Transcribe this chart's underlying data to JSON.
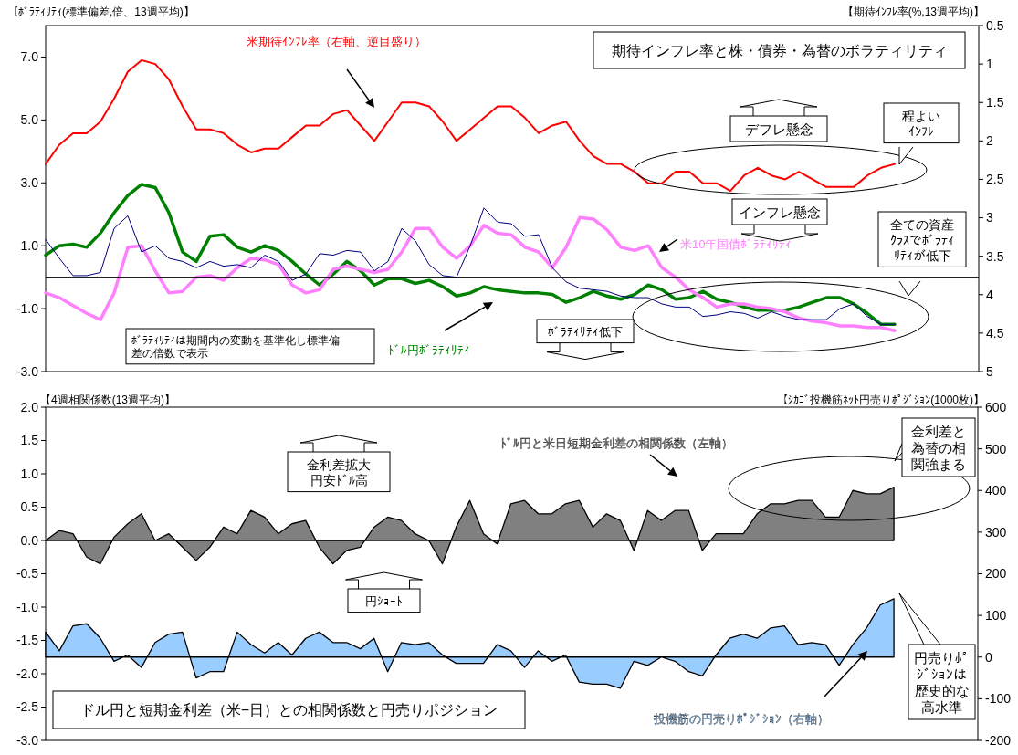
{
  "chart_data": [
    {
      "type": "line",
      "title": "期待インフレ率と株・債券・為替のボラティリティ",
      "ylabel": "【ﾎﾞﾗﾃｨﾘﾃｨ(標準偏差,倍、13週平均)】",
      "y2label": "【期待ｲﾝﾌﾚ率(%,13週平均)】",
      "categories": [
        null,
        null,
        null,
        null,
        null,
        null,
        null,
        null,
        null,
        null,
        null,
        null,
        null,
        null,
        null,
        null,
        null,
        null,
        null,
        null,
        null,
        null,
        null,
        null,
        null,
        null,
        null,
        null,
        null,
        null,
        null,
        null,
        null,
        null,
        null,
        null,
        null,
        null,
        null,
        null,
        null,
        null,
        null,
        null,
        null,
        null,
        null,
        null,
        null,
        null,
        null,
        null,
        null,
        null,
        null,
        null,
        null,
        null,
        null,
        null,
        null,
        null,
        null,
        null,
        null,
        null,
        null,
        null,
        null
      ],
      "ylim": [
        -3,
        8
      ],
      "yticks": [
        {
          "value": -3,
          "label": "-3.0"
        },
        {
          "value": -1,
          "label": "-1.0"
        },
        {
          "value": 1,
          "label": "1.0"
        },
        {
          "value": 3,
          "label": "3.0"
        },
        {
          "value": 5,
          "label": "5.0"
        },
        {
          "value": 7,
          "label": "7.0"
        }
      ],
      "y2lim": [
        5,
        0.5
      ],
      "y2ticks": [
        0.5,
        1,
        1.5,
        2,
        2.5,
        3,
        3.5,
        4,
        4.5,
        5
      ],
      "series": [
        {
          "name": "米期待ｲﾝﾌﾚ率（右軸、逆目盛り）",
          "color": "#ff0000",
          "axis": "y2",
          "values": [
            2.3,
            2.05,
            1.9,
            1.9,
            1.75,
            1.45,
            1.1,
            0.95,
            1.0,
            1.2,
            1.55,
            1.85,
            1.85,
            1.9,
            2.05,
            2.15,
            2.1,
            2.1,
            1.95,
            1.8,
            1.8,
            1.65,
            1.6,
            1.8,
            2.0,
            1.75,
            1.5,
            1.5,
            1.55,
            1.75,
            2.0,
            1.85,
            1.7,
            1.55,
            1.55,
            1.7,
            1.9,
            1.8,
            1.75,
            2.0,
            2.2,
            2.3,
            2.3,
            2.4,
            2.55,
            2.55,
            2.4,
            2.4,
            2.55,
            2.55,
            2.65,
            2.45,
            2.35,
            2.45,
            2.5,
            2.4,
            2.5,
            2.6,
            2.6,
            2.6,
            2.45,
            2.35,
            2.3,
            null,
            null,
            null,
            null,
            null,
            null
          ]
        },
        {
          "name": "ﾄﾞﾙ円ﾎﾞﾗﾃｨﾘﾃｨ",
          "color": "#008000",
          "values": [
            0.7,
            1.0,
            1.05,
            0.95,
            1.4,
            2.05,
            2.6,
            2.95,
            2.85,
            2.05,
            0.8,
            0.5,
            1.3,
            1.35,
            0.95,
            0.8,
            1.0,
            0.85,
            0.5,
            0.1,
            -0.25,
            0.1,
            0.5,
            0.2,
            -0.25,
            -0.05,
            -0.05,
            -0.2,
            -0.1,
            -0.3,
            -0.6,
            -0.5,
            -0.3,
            -0.4,
            -0.45,
            -0.5,
            -0.5,
            -0.55,
            -0.8,
            -0.65,
            -0.45,
            -0.6,
            -0.7,
            -0.55,
            -0.25,
            -0.4,
            -0.7,
            -0.65,
            -0.45,
            -0.7,
            -0.8,
            -0.95,
            -1.05,
            -1.05,
            -1.05,
            -0.95,
            -0.8,
            -0.65,
            -0.65,
            -0.85,
            -1.15,
            -1.5,
            -1.5,
            null,
            null,
            null,
            null,
            null,
            null
          ]
        },
        {
          "name": "米10年国債ﾎﾞﾗﾃｨﾘﾃｨ",
          "color": "#ff80ff",
          "values": [
            -0.5,
            -0.65,
            -0.9,
            -1.15,
            -1.35,
            -0.5,
            0.95,
            1.0,
            0.2,
            -0.5,
            -0.45,
            0.0,
            0.05,
            -0.1,
            0.3,
            0.6,
            0.55,
            0.4,
            -0.25,
            -0.5,
            -0.4,
            0.25,
            0.35,
            0.25,
            0.15,
            0.25,
            0.8,
            1.55,
            1.55,
            0.95,
            0.6,
            1.0,
            1.65,
            1.4,
            1.35,
            0.95,
            0.8,
            0.3,
            0.95,
            1.9,
            1.85,
            1.5,
            0.95,
            0.85,
            1.0,
            0.3,
            0.0,
            -0.4,
            -0.65,
            -0.95,
            -0.85,
            -0.85,
            -0.95,
            -1.0,
            -1.1,
            -1.3,
            -1.4,
            -1.45,
            -1.55,
            -1.55,
            -1.6,
            -1.6,
            -1.7,
            null,
            null,
            null,
            null,
            null,
            null
          ]
        },
        {
          "color": "#000080",
          "values": [
            1.2,
            0.6,
            0.05,
            0.05,
            0.15,
            1.55,
            1.95,
            0.8,
            1.0,
            0.6,
            0.5,
            0.3,
            0.5,
            0.35,
            0.4,
            0.3,
            0.7,
            0.5,
            -0.1,
            0.1,
            0.75,
            0.7,
            0.85,
            0.8,
            0.2,
            0.5,
            1.55,
            1.15,
            0.4,
            0.05,
            0.0,
            1.0,
            2.2,
            1.75,
            1.7,
            1.3,
            1.35,
            0.3,
            -0.15,
            -0.35,
            -0.4,
            -0.45,
            -0.6,
            -0.65,
            -0.65,
            -0.85,
            -0.95,
            -0.95,
            -1.25,
            -1.2,
            -1.1,
            -1.15,
            -1.3,
            -1.1,
            -1.25,
            -1.35,
            -1.35,
            -1.35,
            -1.0,
            -0.85,
            -1.25,
            -1.5,
            -1.5,
            null,
            null,
            null,
            null,
            null,
            null
          ]
        }
      ],
      "ref_lines": [
        {
          "axis": "y",
          "value": 0
        }
      ],
      "annotations": [
        "デフレ懸念",
        "インフレ懸念",
        "程よいｲﾝﾌﾚ",
        "全ての資産ｸﾗｽでﾎﾞﾗﾃｨﾘﾃｨが低下",
        "ﾎﾞﾗﾃｨﾘﾃｨ低下",
        "ﾎﾞﾗﾃｨﾘﾃｨは期間内の変動を基準化し標準偏差の倍数で表示"
      ]
    },
    {
      "type": "area",
      "title": "ドル円と短期金利差（米−日）との相関係数と円売りポジション",
      "ylabel": "【4週相関係数(13週平均)】",
      "y2label": "【ｼｶｺﾞ投機筋ﾈｯﾄ円売りﾎﾟｼﾞｼｮﾝ(1000枚)】",
      "categories": [
        null,
        null,
        null,
        null,
        null,
        null,
        null,
        null,
        null,
        null,
        null,
        null,
        null,
        null,
        null,
        null,
        null,
        null,
        null,
        null,
        null,
        null,
        null,
        null,
        null,
        null,
        null,
        null,
        null,
        null,
        null,
        null,
        null,
        null,
        null,
        null,
        null,
        null,
        null,
        null,
        null,
        null,
        null,
        null,
        null,
        null,
        null,
        null,
        null,
        null,
        null,
        null,
        null,
        null,
        null,
        null,
        null,
        null,
        null,
        null,
        null,
        null,
        null,
        null,
        null,
        null,
        null,
        null,
        null
      ],
      "ylim": [
        -3,
        2
      ],
      "yticks": [
        {
          "value": -3,
          "label": "-3.0"
        },
        {
          "value": -2.5,
          "label": "-2.5"
        },
        {
          "value": -2,
          "label": "-2.0"
        },
        {
          "value": -1.5,
          "label": "-1.5"
        },
        {
          "value": -1,
          "label": "-1.0"
        },
        {
          "value": -0.5,
          "label": "-0.5"
        },
        {
          "value": 0,
          "label": "0.0"
        },
        {
          "value": 0.5,
          "label": "0.5"
        },
        {
          "value": 1,
          "label": "1.0"
        },
        {
          "value": 1.5,
          "label": "1.5"
        },
        {
          "value": 2,
          "label": "2.0"
        }
      ],
      "y2lim": [
        -200,
        600
      ],
      "y2ticks": [
        -200,
        -100,
        0,
        100,
        200,
        300,
        400,
        500,
        600
      ],
      "series": [
        {
          "name": "ﾄﾞﾙ円と米日短期金利差の相関係数（左軸）",
          "color": "#808080",
          "values": [
            0.0,
            0.15,
            0.1,
            -0.25,
            -0.35,
            0.05,
            0.25,
            0.4,
            0.0,
            0.1,
            -0.1,
            -0.3,
            -0.1,
            0.2,
            0.1,
            0.45,
            0.35,
            0.1,
            0.25,
            0.3,
            -0.1,
            -0.35,
            -0.15,
            -0.1,
            0.2,
            0.35,
            0.3,
            0.1,
            0.0,
            -0.35,
            0.2,
            0.6,
            0.1,
            -0.05,
            0.55,
            0.6,
            0.4,
            0.4,
            0.55,
            0.6,
            0.2,
            0.4,
            0.3,
            -0.15,
            0.45,
            0.3,
            0.45,
            0.45,
            -0.15,
            0.1,
            0.1,
            0.1,
            0.4,
            0.55,
            0.55,
            0.6,
            0.6,
            0.35,
            0.35,
            0.75,
            0.7,
            0.7,
            0.8,
            null,
            null,
            null,
            null,
            null,
            null
          ]
        },
        {
          "name": "投機筋の円売りﾎﾟｼﾞｼｮﾝ（右軸）",
          "color": "#99ccff",
          "axis": "y2",
          "values": [
            60,
            15,
            75,
            80,
            45,
            -10,
            5,
            -25,
            35,
            55,
            60,
            -50,
            -35,
            -35,
            60,
            30,
            10,
            35,
            5,
            45,
            60,
            35,
            35,
            20,
            45,
            -35,
            35,
            30,
            35,
            5,
            -15,
            -15,
            -15,
            30,
            15,
            -25,
            15,
            -10,
            5,
            -60,
            -65,
            -65,
            -75,
            -10,
            -20,
            0,
            -10,
            -35,
            -45,
            5,
            45,
            55,
            45,
            70,
            75,
            30,
            35,
            30,
            -20,
            30,
            70,
            125,
            140,
            null,
            null,
            null,
            null,
            null,
            null
          ]
        }
      ],
      "annotations": [
        "金利差拡大円安ﾄﾞﾙ高",
        "円ｼｮｰﾄ",
        "金利差と為替の相関強まる",
        "円売りﾎﾟｼﾞｼｮﾝは歴史的な高水準"
      ]
    }
  ]
}
